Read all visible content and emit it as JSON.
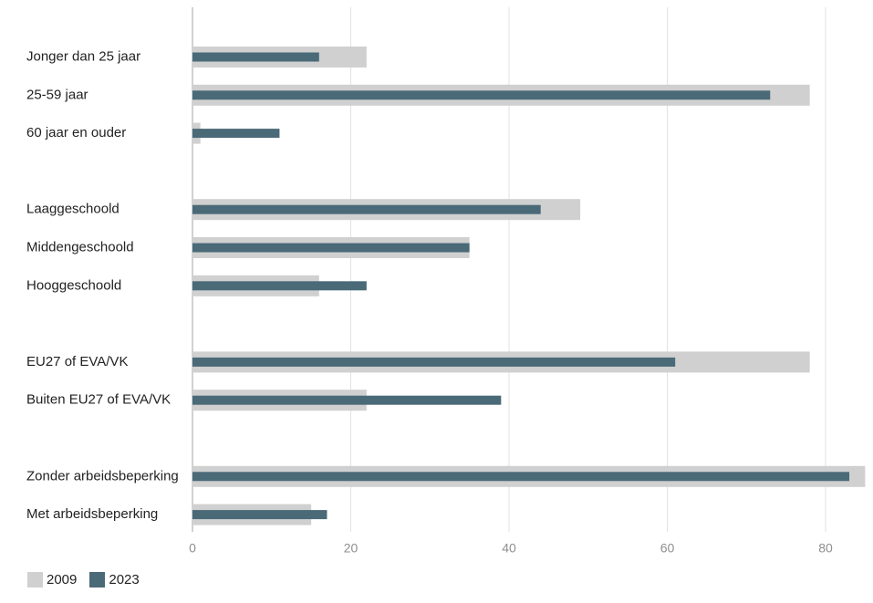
{
  "chart_data": {
    "type": "bar",
    "orientation": "horizontal",
    "categories": [
      "Jonger dan 25 jaar",
      "25-59 jaar",
      "60 jaar en ouder",
      "Laaggeschoold",
      "Middengeschoold",
      "Hooggeschoold",
      "EU27 of EVA/VK",
      "Buiten EU27 of EVA/VK",
      "Zonder arbeidsbeperking",
      "Met arbeidsbeperking"
    ],
    "groups": [
      [
        0,
        1,
        2
      ],
      [
        3,
        4,
        5
      ],
      [
        6,
        7
      ],
      [
        8,
        9
      ]
    ],
    "series": [
      {
        "name": "2009",
        "color": "#d0d0d0",
        "values": [
          22,
          78,
          1,
          49,
          35,
          16,
          78,
          22,
          85,
          15
        ]
      },
      {
        "name": "2023",
        "color": "#4a6a78",
        "values": [
          16,
          73,
          11,
          44,
          35,
          22,
          61,
          39,
          83,
          17
        ]
      }
    ],
    "xticks": [
      0,
      20,
      40,
      60,
      80
    ],
    "xlim": [
      0,
      85
    ],
    "grid": true,
    "legend_position": "bottom-left"
  }
}
